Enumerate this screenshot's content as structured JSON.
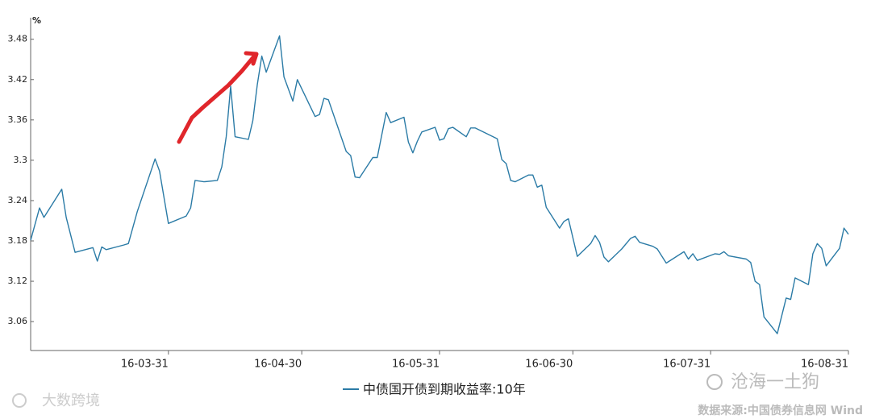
{
  "chart_data": {
    "type": "line",
    "y_label": "%",
    "x": [
      "16-02-29",
      "16-03-02",
      "16-03-03",
      "16-03-07",
      "16-03-08",
      "16-03-10",
      "16-03-14",
      "16-03-15",
      "16-03-16",
      "16-03-17",
      "16-03-21",
      "16-03-22",
      "16-03-24",
      "16-03-28",
      "16-03-29",
      "16-03-31",
      "16-04-04",
      "16-04-05",
      "16-04-06",
      "16-04-08",
      "16-04-11",
      "16-04-12",
      "16-04-13",
      "16-04-14",
      "16-04-15",
      "16-04-18",
      "16-04-19",
      "16-04-20",
      "16-04-21",
      "16-04-22",
      "16-04-25",
      "16-04-26",
      "16-04-28",
      "16-04-29",
      "16-05-03",
      "16-05-04",
      "16-05-05",
      "16-05-06",
      "16-05-10",
      "16-05-11",
      "16-05-12",
      "16-05-13",
      "16-05-16",
      "16-05-17",
      "16-05-19",
      "16-05-20",
      "16-05-23",
      "16-05-24",
      "16-05-25",
      "16-05-26",
      "16-05-27",
      "16-05-30",
      "16-05-31",
      "16-06-01",
      "16-06-02",
      "16-06-03",
      "16-06-06",
      "16-06-07",
      "16-06-08",
      "16-06-13",
      "16-06-14",
      "16-06-15",
      "16-06-16",
      "16-06-17",
      "16-06-20",
      "16-06-21",
      "16-06-22",
      "16-06-23",
      "16-06-24",
      "16-06-27",
      "16-06-28",
      "16-06-29",
      "16-07-01",
      "16-07-04",
      "16-07-05",
      "16-07-06",
      "16-07-07",
      "16-07-08",
      "16-07-11",
      "16-07-13",
      "16-07-14",
      "16-07-15",
      "16-07-18",
      "16-07-19",
      "16-07-21",
      "16-07-25",
      "16-07-26",
      "16-07-27",
      "16-07-28",
      "16-08-01",
      "16-08-02",
      "16-08-03",
      "16-08-04",
      "16-08-08",
      "16-08-09",
      "16-08-10",
      "16-08-11",
      "16-08-12",
      "16-08-15",
      "16-08-17",
      "16-08-18",
      "16-08-19",
      "16-08-22",
      "16-08-23",
      "16-08-24",
      "16-08-25",
      "16-08-26",
      "16-08-29",
      "16-08-30",
      "16-08-31"
    ],
    "series": [
      {
        "name": "中债国开债到期收益率:10年",
        "color": "#2b7ba6",
        "values": [
          3.181,
          3.229,
          3.215,
          3.257,
          3.215,
          3.163,
          3.17,
          3.15,
          3.171,
          3.167,
          3.174,
          3.176,
          3.224,
          3.302,
          3.284,
          3.206,
          3.217,
          3.229,
          3.27,
          3.268,
          3.27,
          3.29,
          3.335,
          3.41,
          3.335,
          3.331,
          3.359,
          3.413,
          3.455,
          3.431,
          3.485,
          3.424,
          3.388,
          3.42,
          3.365,
          3.368,
          3.392,
          3.39,
          3.313,
          3.307,
          3.275,
          3.274,
          3.304,
          3.304,
          3.371,
          3.356,
          3.364,
          3.327,
          3.311,
          3.328,
          3.342,
          3.349,
          3.33,
          3.332,
          3.347,
          3.349,
          3.335,
          3.348,
          3.348,
          3.332,
          3.301,
          3.295,
          3.27,
          3.268,
          3.278,
          3.278,
          3.26,
          3.263,
          3.23,
          3.199,
          3.209,
          3.213,
          3.157,
          3.176,
          3.188,
          3.178,
          3.156,
          3.149,
          3.168,
          3.184,
          3.187,
          3.178,
          3.172,
          3.168,
          3.147,
          3.164,
          3.153,
          3.161,
          3.151,
          3.161,
          3.16,
          3.164,
          3.158,
          3.153,
          3.148,
          3.12,
          3.115,
          3.067,
          3.042,
          3.095,
          3.093,
          3.125,
          3.115,
          3.161,
          3.176,
          3.169,
          3.143,
          3.169,
          3.199,
          3.19
        ]
      }
    ],
    "xlim": [
      "16-02-29",
      "16-08-31"
    ],
    "xticks": [
      "16-03-31",
      "16-04-30",
      "16-05-31",
      "16-06-30",
      "16-07-31",
      "16-08-31"
    ],
    "ylim": [
      3.017,
      3.512
    ],
    "yticks": [
      3.06,
      3.12,
      3.18,
      3.24,
      3.3,
      3.36,
      3.42,
      3.48
    ],
    "grid": false,
    "watermarks": [
      "沧海一土狗",
      "大数跨境"
    ],
    "source": "数据来源:中国债券信息网 Wind"
  }
}
